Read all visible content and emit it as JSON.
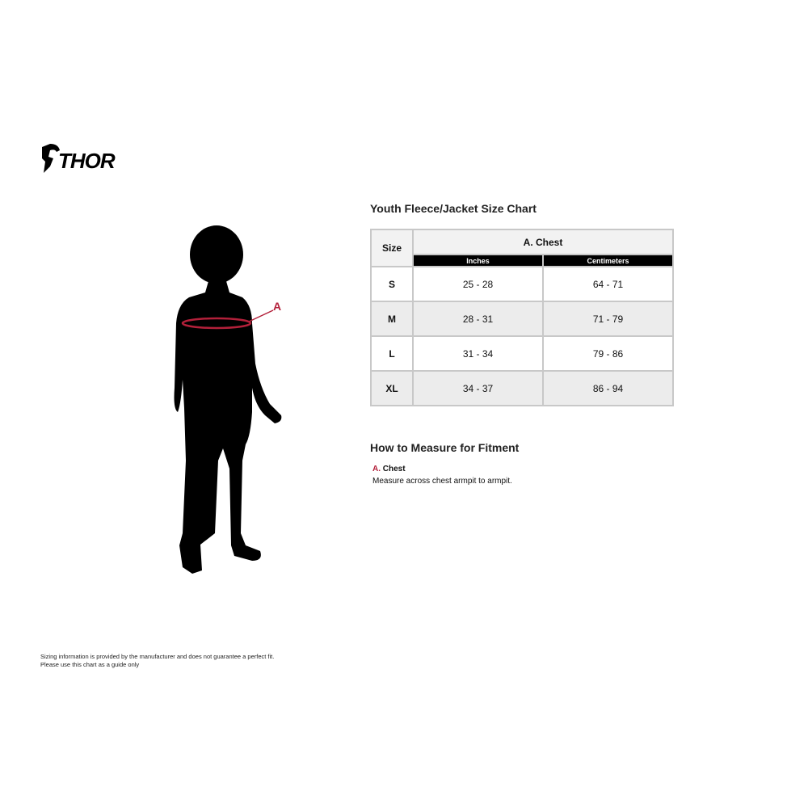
{
  "brand": {
    "logo_text": "THOR"
  },
  "chart": {
    "title": "Youth Fleece/Jacket Size Chart",
    "headers": {
      "size": "Size",
      "measure": "A. Chest",
      "units": [
        "Inches",
        "Centimeters"
      ]
    },
    "rows": [
      {
        "size": "S",
        "inches": "25 - 28",
        "cm": "64 - 71"
      },
      {
        "size": "M",
        "inches": "28 - 31",
        "cm": "71 - 79"
      },
      {
        "size": "L",
        "inches": "31 - 34",
        "cm": "79 - 86"
      },
      {
        "size": "XL",
        "inches": "34 - 37",
        "cm": "86 - 94"
      }
    ]
  },
  "figure": {
    "marker_label": "A",
    "marker_color": "#b3203a"
  },
  "howto": {
    "title": "How to Measure for Fitment",
    "items": [
      {
        "letter": "A.",
        "label": "Chest",
        "description": "Measure across chest armpit to armpit."
      }
    ]
  },
  "disclaimer": {
    "line1": "Sizing information is provided by the manufacturer and does not guarantee a perfect fit.",
    "line2": "Please use this chart as a guide only"
  }
}
